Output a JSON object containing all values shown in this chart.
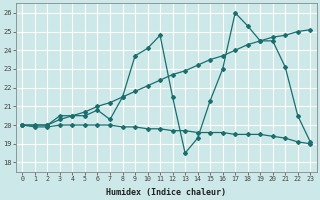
{
  "xlabel": "Humidex (Indice chaleur)",
  "bg_color": "#cde8e8",
  "line_color": "#1a6e6e",
  "grid_color": "#b8d8d8",
  "xlim": [
    -0.5,
    23.5
  ],
  "ylim": [
    17.5,
    26.5
  ],
  "yticks": [
    18,
    19,
    20,
    21,
    22,
    23,
    24,
    25,
    26
  ],
  "xticks": [
    0,
    1,
    2,
    3,
    4,
    5,
    6,
    7,
    8,
    9,
    10,
    11,
    12,
    13,
    14,
    15,
    16,
    17,
    18,
    19,
    20,
    21,
    22,
    23
  ],
  "line1_x": [
    0,
    1,
    2,
    3,
    4,
    5,
    6,
    7,
    8,
    9,
    10,
    11,
    12,
    13,
    14,
    15,
    16,
    17,
    18,
    19,
    20,
    21,
    22,
    23
  ],
  "line1_y": [
    20.0,
    19.9,
    19.9,
    20.0,
    20.0,
    20.0,
    20.0,
    20.0,
    19.9,
    19.9,
    19.8,
    19.8,
    19.7,
    19.7,
    19.6,
    19.6,
    19.6,
    19.5,
    19.5,
    19.5,
    19.4,
    19.3,
    19.1,
    19.0
  ],
  "line2_x": [
    0,
    1,
    2,
    3,
    4,
    5,
    6,
    7,
    8,
    9,
    10,
    11,
    12,
    13,
    14,
    15,
    16,
    17,
    18,
    19,
    20,
    21,
    22,
    23
  ],
  "line2_y": [
    20.0,
    20.0,
    20.0,
    20.5,
    20.5,
    20.5,
    20.8,
    20.3,
    21.5,
    23.7,
    24.1,
    24.8,
    21.5,
    18.5,
    19.3,
    21.3,
    23.0,
    26.0,
    25.3,
    24.5,
    24.5,
    23.1,
    20.5,
    19.1
  ],
  "line3_x": [
    0,
    2,
    3,
    4,
    5,
    6,
    7,
    8,
    9,
    10,
    11,
    12,
    13,
    14,
    15,
    16,
    17,
    18,
    19,
    20,
    21,
    22,
    23
  ],
  "line3_y": [
    20.0,
    20.0,
    20.3,
    20.5,
    20.7,
    21.0,
    21.2,
    21.5,
    21.8,
    22.1,
    22.4,
    22.7,
    22.9,
    23.2,
    23.5,
    23.7,
    24.0,
    24.3,
    24.5,
    24.7,
    24.8,
    25.0,
    25.1
  ]
}
